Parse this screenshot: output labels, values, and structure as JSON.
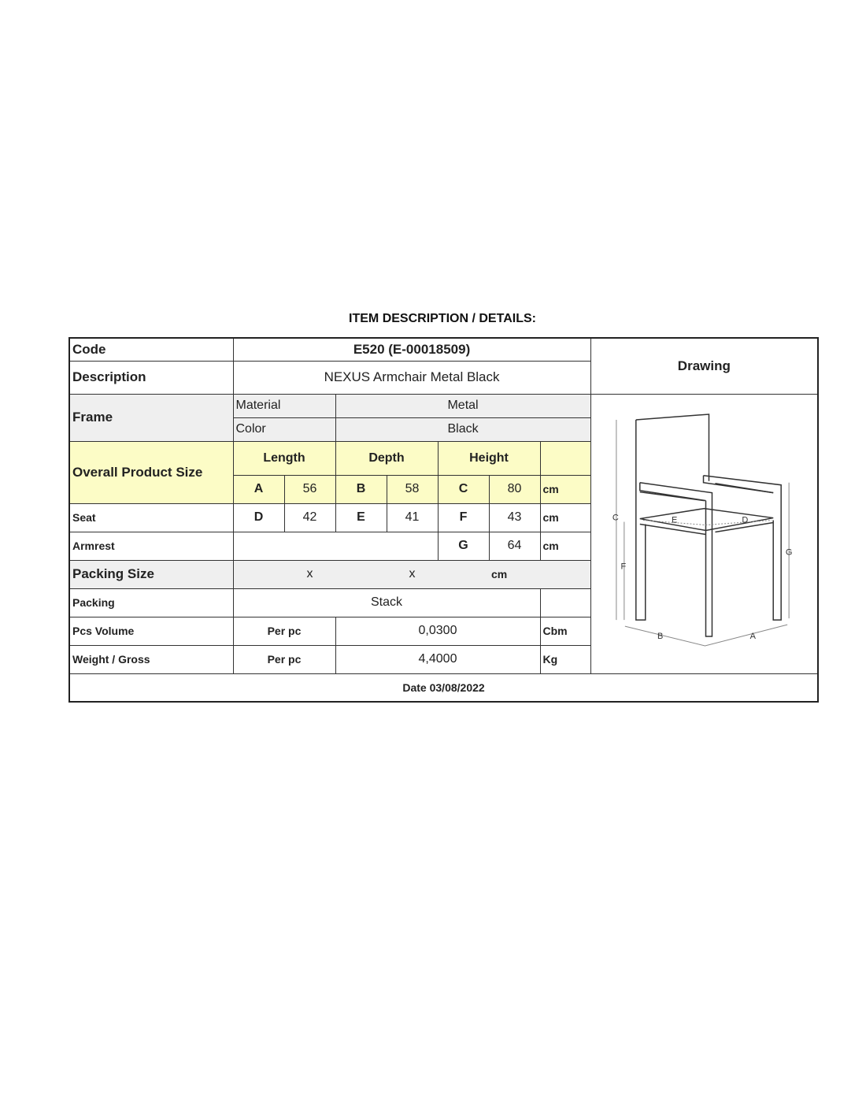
{
  "title": "ITEM DESCRIPTION / DETAILS:",
  "code": {
    "label": "Code",
    "value": "E520  (E-00018509)"
  },
  "description": {
    "label": "Description",
    "value": "NEXUS Armchair Metal Black"
  },
  "drawing_label": "Drawing",
  "frame": {
    "label": "Frame",
    "material_label": "Material",
    "material": "Metal",
    "color_label": "Color",
    "color": "Black"
  },
  "overall": {
    "label": "Overall Product Size",
    "length": "Length",
    "depth": "Depth",
    "height": "Height",
    "a": "A",
    "a_val": "56",
    "b": "B",
    "b_val": "58",
    "c": "C",
    "c_val": "80",
    "unit": "cm"
  },
  "seat": {
    "label": "Seat",
    "d": "D",
    "d_val": "42",
    "e": "E",
    "e_val": "41",
    "f": "F",
    "f_val": "43",
    "unit": "cm"
  },
  "armrest": {
    "label": "Armrest",
    "g": "G",
    "g_val": "64",
    "unit": "cm"
  },
  "packing_size": {
    "label": "Packing Size",
    "x1": "x",
    "x2": "x",
    "unit": "cm"
  },
  "packing": {
    "label": "Packing",
    "value": "Stack"
  },
  "volume": {
    "label": "Pcs Volume",
    "per": "Per pc",
    "value": "0,0300",
    "unit": "Cbm"
  },
  "weight": {
    "label": "Weight / Gross",
    "per": "Per pc",
    "value": "4,4000",
    "unit": "Kg"
  },
  "date": "Date 03/08/2022",
  "drawing_letters": {
    "a": "A",
    "b": "B",
    "c": "C",
    "d": "D",
    "e": "E",
    "f": "F",
    "g": "G"
  },
  "colors": {
    "yellow": "#fcfcc6",
    "grey": "#efefef"
  }
}
